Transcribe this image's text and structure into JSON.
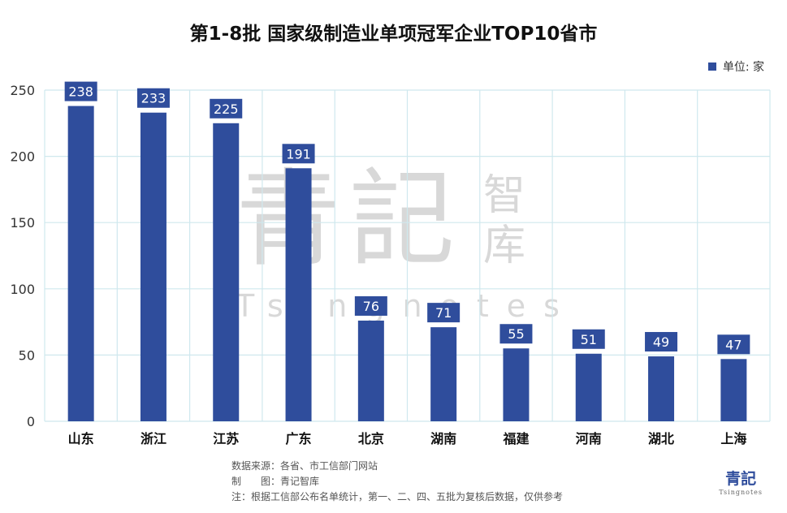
{
  "title": "第1-8批 国家级制造业单项冠军企业TOP10省市",
  "legend": {
    "label": "单位: 家",
    "color": "#2f4d9c"
  },
  "chart_data": {
    "type": "bar",
    "title": "第1-8批 国家级制造业单项冠军企业TOP10省市",
    "categories": [
      "山东",
      "浙江",
      "江苏",
      "广东",
      "北京",
      "湖南",
      "福建",
      "河南",
      "湖北",
      "上海"
    ],
    "values": [
      238,
      233,
      225,
      191,
      76,
      71,
      55,
      51,
      49,
      47
    ],
    "ylim": [
      0,
      250
    ],
    "yticks": [
      0,
      50,
      100,
      150,
      200,
      250
    ],
    "grid": true,
    "legend_position": "top-right",
    "bar_color": "#2f4d9c",
    "grid_color": "#cfe8ee"
  },
  "footer": {
    "source": "数据来源：各省、市工信部门网站",
    "maker": "制　　图：青记智库",
    "note": "注：根据工信部公布名单统计，第一、二、四、五批为复核后数据，仅供参考"
  },
  "watermark": {
    "chars": "青記",
    "small": "智库",
    "latin": "Tsingnotes"
  },
  "logo": {
    "main": "青記",
    "sub": "Tsingnotes"
  }
}
